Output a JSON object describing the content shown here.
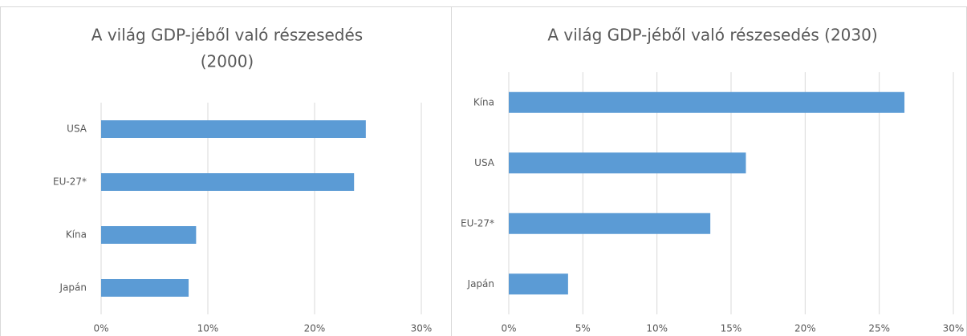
{
  "chart_data": [
    {
      "type": "bar",
      "orientation": "horizontal",
      "title": [
        "A világ GDP-jéből való részesedés",
        "(2000)"
      ],
      "categories": [
        "USA",
        "EU-27*",
        "Kína",
        "Japán"
      ],
      "values": [
        24.8,
        23.7,
        8.9,
        8.2
      ],
      "color": "#5b9bd5",
      "xlim": [
        0,
        30
      ],
      "xticks": [
        {
          "value": 0,
          "label": "0%"
        },
        {
          "value": 10,
          "label": "10%"
        },
        {
          "value": 20,
          "label": "20%"
        },
        {
          "value": 30,
          "label": "30%"
        }
      ],
      "grid": true
    },
    {
      "type": "bar",
      "orientation": "horizontal",
      "title": [
        "A világ GDP-jéből való részesedés (2030)"
      ],
      "categories": [
        "Kína",
        "USA",
        "EU-27*",
        "Japán"
      ],
      "values": [
        26.7,
        16.0,
        13.6,
        4.0
      ],
      "color": "#5b9bd5",
      "xlim": [
        0,
        30
      ],
      "xticks": [
        {
          "value": 0,
          "label": "0%"
        },
        {
          "value": 5,
          "label": "5%"
        },
        {
          "value": 10,
          "label": "10%"
        },
        {
          "value": 15,
          "label": "15%"
        },
        {
          "value": 20,
          "label": "20%"
        },
        {
          "value": 25,
          "label": "25%"
        },
        {
          "value": 30,
          "label": "30%"
        }
      ],
      "grid": true
    }
  ]
}
